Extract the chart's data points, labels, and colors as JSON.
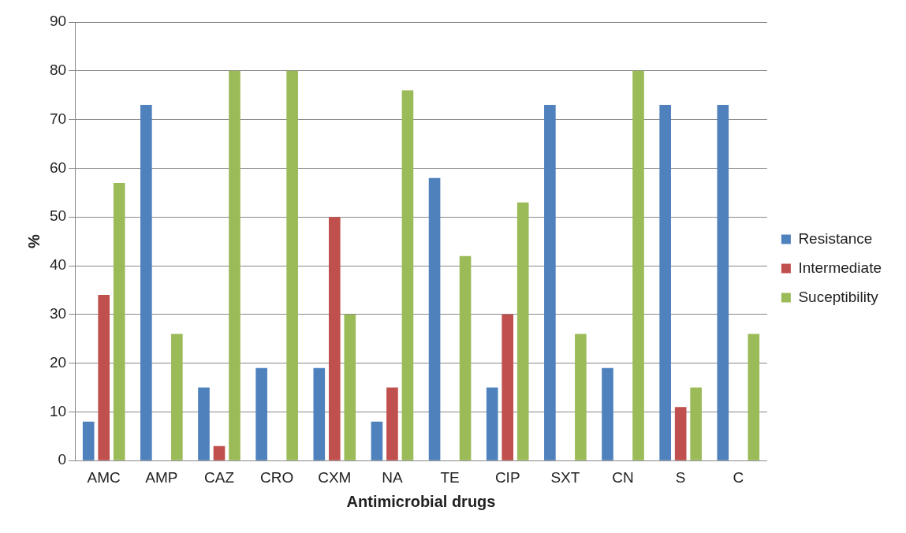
{
  "chart_data": {
    "type": "bar",
    "xlabel": "Antimicrobial drugs",
    "ylabel": "%",
    "categories": [
      "AMC",
      "AMP",
      "CAZ",
      "CRO",
      "CXM",
      "NA",
      "TE",
      "CIP",
      "SXT",
      "CN",
      "S",
      "C"
    ],
    "series": [
      {
        "name": "Resistance",
        "color": "#4f81bd",
        "values": [
          8,
          73,
          15,
          19,
          19,
          8,
          58,
          15,
          73,
          19,
          73,
          73
        ]
      },
      {
        "name": "Intermediate",
        "color": "#c0504d",
        "values": [
          34,
          0,
          3,
          0,
          50,
          15,
          0,
          30,
          0,
          0,
          11,
          0
        ]
      },
      {
        "name": "Suceptibility",
        "color": "#9bbb59",
        "values": [
          57,
          26,
          80,
          80,
          30,
          76,
          42,
          53,
          26,
          80,
          15,
          26
        ]
      }
    ],
    "ylim": [
      0,
      90
    ],
    "yticks": [
      0,
      10,
      20,
      30,
      40,
      50,
      60,
      70,
      80,
      90
    ],
    "grid": "y",
    "legend": "right"
  }
}
